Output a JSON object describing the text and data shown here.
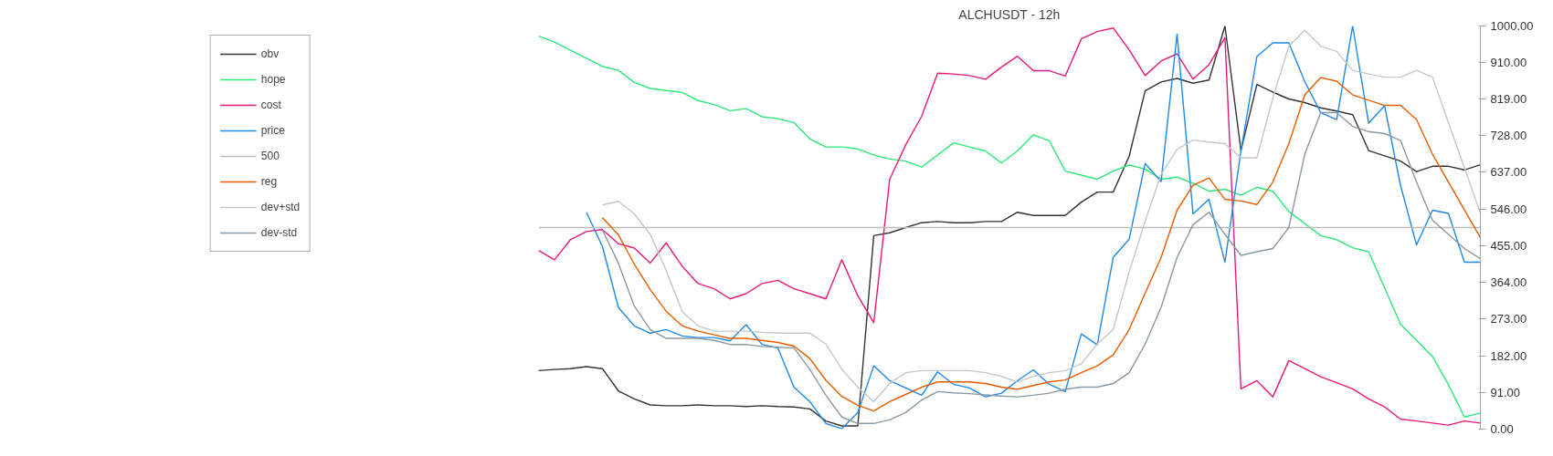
{
  "chart_data": {
    "type": "line",
    "title": "ALCHUSDT - 12h",
    "categories": [
      null,
      null,
      null,
      null,
      null,
      null,
      null,
      null,
      null,
      null,
      null,
      null,
      null,
      null,
      null,
      null,
      null,
      null,
      null,
      null,
      null,
      null,
      null,
      null,
      null,
      null,
      null,
      null,
      null,
      null,
      null,
      null,
      null,
      null,
      null,
      null,
      null,
      null,
      null,
      null,
      null,
      null,
      null,
      null,
      null,
      null,
      null,
      null,
      null,
      null,
      null,
      null,
      null,
      null,
      null,
      null,
      null,
      null,
      null,
      null
    ],
    "ylim": [
      0,
      1000
    ],
    "yticks": [
      {
        "value": 0,
        "label": "0.00"
      },
      {
        "value": 91,
        "label": "91.00"
      },
      {
        "value": 182,
        "label": "182.00"
      },
      {
        "value": 273,
        "label": "273.00"
      },
      {
        "value": 364,
        "label": "364.00"
      },
      {
        "value": 455,
        "label": "455.00"
      },
      {
        "value": 546,
        "label": "546.00"
      },
      {
        "value": 637,
        "label": "637.00"
      },
      {
        "value": 728,
        "label": "728.00"
      },
      {
        "value": 819,
        "label": "819.00"
      },
      {
        "value": 910,
        "label": "910.00"
      },
      {
        "value": 1000,
        "label": "1000.00"
      }
    ],
    "tick_labels": "y",
    "grid": false,
    "legend": "left",
    "marker": "none",
    "line_style": "solid",
    "series": [
      {
        "name": "obv",
        "color": "#333333",
        "values": [
          145,
          148,
          150,
          155,
          150,
          95,
          75,
          60,
          58,
          58,
          60,
          58,
          58,
          56,
          58,
          56,
          55,
          50,
          20,
          8,
          8,
          480,
          487,
          500,
          512,
          515,
          512,
          512,
          515,
          515,
          538,
          530,
          530,
          530,
          563,
          588,
          588,
          677,
          839,
          861,
          870,
          858,
          866,
          1000,
          691,
          855,
          836,
          819,
          810,
          797,
          789,
          780,
          691,
          678,
          665,
          639,
          652,
          652,
          643,
          656
        ]
      },
      {
        "name": "hope",
        "color": "#2ee87a",
        "values": [
          975,
          960,
          940,
          920,
          900,
          890,
          860,
          845,
          840,
          835,
          815,
          805,
          790,
          795,
          775,
          770,
          760,
          720,
          700,
          700,
          695,
          680,
          670,
          665,
          650,
          680,
          710,
          700,
          690,
          660,
          690,
          730,
          715,
          640,
          630,
          620,
          640,
          655,
          645,
          620,
          625,
          610,
          590,
          595,
          580,
          600,
          590,
          540,
          510,
          480,
          470,
          450,
          440,
          350,
          260,
          220,
          180,
          110,
          30,
          40
        ]
      },
      {
        "name": "cost",
        "color": "#e6197a",
        "values": [
          443,
          420,
          470,
          490,
          495,
          460,
          449,
          412,
          462,
          404,
          361,
          348,
          323,
          336,
          361,
          369,
          348,
          336,
          323,
          420,
          331,
          264,
          620,
          705,
          776,
          883,
          881,
          877,
          868,
          898,
          925,
          889,
          889,
          876,
          968,
          986,
          995,
          941,
          877,
          913,
          931,
          868,
          904,
          971,
          100,
          120,
          80,
          170,
          150,
          130,
          115,
          100,
          75,
          55,
          25,
          20,
          15,
          10,
          20,
          15
        ]
      },
      {
        "name": "price",
        "color": "#1e88e5",
        "values": [
          null,
          null,
          null,
          538,
          453,
          302,
          256,
          238,
          247,
          231,
          227,
          227,
          219,
          259,
          210,
          201,
          104,
          68,
          14,
          1,
          41,
          157,
          120,
          102,
          84,
          142,
          111,
          102,
          80,
          89,
          120,
          147,
          111,
          93,
          236,
          209,
          426,
          471,
          659,
          614,
          980,
          534,
          570,
          414,
          690,
          924,
          958,
          958,
          862,
          785,
          768,
          1000,
          759,
          802,
          604,
          457,
          543,
          535,
          414,
          414
        ]
      },
      {
        "name": "500",
        "color": "#bbbbbb",
        "values": [
          500,
          500,
          500,
          500,
          500,
          500,
          500,
          500,
          500,
          500,
          500,
          500,
          500,
          500,
          500,
          500,
          500,
          500,
          500,
          500,
          500,
          500,
          500,
          500,
          500,
          500,
          500,
          500,
          500,
          500,
          500,
          500,
          500,
          500,
          500,
          500,
          500,
          500,
          500,
          500,
          500,
          500,
          500,
          500,
          500,
          500,
          500,
          500,
          500,
          500,
          500,
          500,
          500,
          500,
          500,
          500,
          500,
          500,
          500,
          500
        ]
      },
      {
        "name": "reg",
        "color": "#e65c00",
        "values": [
          null,
          null,
          null,
          null,
          525,
          482,
          409,
          346,
          292,
          256,
          243,
          234,
          225,
          225,
          220,
          215,
          206,
          175,
          121,
          81,
          59,
          45,
          68,
          86,
          104,
          117,
          117,
          117,
          113,
          104,
          99,
          108,
          117,
          122,
          140,
          157,
          184,
          247,
          337,
          426,
          543,
          605,
          623,
          570,
          566,
          557,
          613,
          708,
          829,
          872,
          863,
          829,
          816,
          803,
          803,
          768,
          682,
          613,
          544,
          475
        ]
      },
      {
        "name": "dev+std",
        "color": "#c0c8cc",
        "values": [
          null,
          null,
          null,
          null,
          556,
          565,
          534,
          483,
          393,
          292,
          256,
          243,
          243,
          243,
          240,
          238,
          238,
          238,
          211,
          148,
          104,
          68,
          113,
          140,
          145,
          145,
          145,
          145,
          140,
          131,
          117,
          131,
          140,
          145,
          162,
          211,
          247,
          390,
          516,
          632,
          694,
          717,
          712,
          708,
          673,
          673,
          821,
          950,
          989,
          950,
          937,
          890,
          881,
          873,
          873,
          890,
          873,
          760,
          648,
          536
        ]
      },
      {
        "name": "dev-std",
        "color": "#8899a3",
        "values": [
          null,
          null,
          null,
          null,
          494,
          412,
          305,
          247,
          225,
          225,
          225,
          220,
          210,
          210,
          205,
          203,
          201,
          148,
          84,
          30,
          14,
          14,
          23,
          41,
          72,
          93,
          90,
          88,
          85,
          82,
          80,
          84,
          89,
          99,
          104,
          104,
          113,
          140,
          211,
          302,
          426,
          507,
          538,
          483,
          431,
          440,
          448,
          500,
          682,
          785,
          785,
          751,
          738,
          733,
          716,
          613,
          518,
          483,
          448,
          423
        ]
      }
    ]
  }
}
